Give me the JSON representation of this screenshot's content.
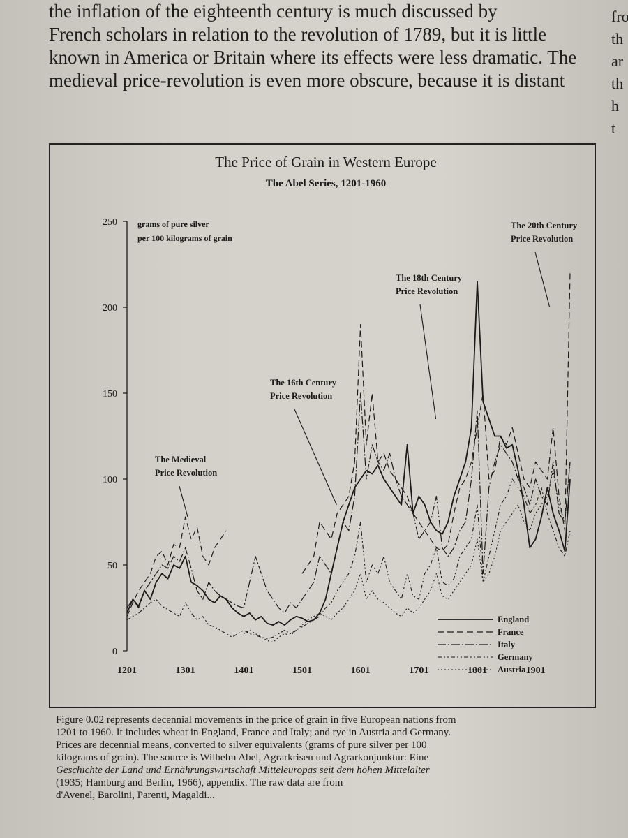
{
  "page_text": {
    "top_lines": [
      "the inflation of the eighteenth century is much discussed by",
      "French scholars in relation to the revolution of 1789, but it is little",
      "known in America or Britain where its effects were less dramatic. The",
      "medieval price-revolution is even more obscure, because it is distant"
    ],
    "side_fragments": [
      "fro",
      "th",
      "ar",
      "th",
      "",
      "h",
      "t"
    ]
  },
  "chart_data": {
    "type": "line",
    "title": "The Price of Grain in Western Europe",
    "subtitle": "The Abel Series, 1201-1960",
    "ylabel": "grams of pure silver per 100 kilograms of grain",
    "ylabel_lines": [
      "grams of pure silver",
      "per 100 kilograms of grain"
    ],
    "xlabel": "",
    "xlim": [
      1201,
      1960
    ],
    "ylim": [
      0,
      250
    ],
    "x_ticks": [
      1201,
      1301,
      1401,
      1501,
      1601,
      1701,
      1801,
      1901
    ],
    "y_ticks": [
      0,
      50,
      100,
      150,
      200,
      250
    ],
    "grid": false,
    "legend_position": "bottom-right",
    "annotations": [
      {
        "lines": [
          "The Medieval",
          "Price Revolution"
        ],
        "points_to": [
          1305,
          78
        ]
      },
      {
        "lines": [
          "The 16th Century",
          "Price Revolution"
        ],
        "points_to": [
          1560,
          85
        ]
      },
      {
        "lines": [
          "The 18th Century",
          "Price Revolution"
        ],
        "points_to": [
          1730,
          135
        ]
      },
      {
        "lines": [
          "The 20th Century",
          "Price Revolution"
        ],
        "points_to": [
          1925,
          200
        ]
      }
    ],
    "series": [
      {
        "name": "England",
        "dash": "",
        "width": 1.8,
        "x": [
          1201,
          1211,
          1221,
          1231,
          1241,
          1251,
          1261,
          1271,
          1281,
          1291,
          1301,
          1311,
          1321,
          1331,
          1341,
          1351,
          1361,
          1371,
          1381,
          1391,
          1401,
          1411,
          1421,
          1431,
          1441,
          1451,
          1461,
          1471,
          1481,
          1491,
          1501,
          1511,
          1521,
          1531,
          1541,
          1551,
          1561,
          1571,
          1581,
          1591,
          1601,
          1611,
          1621,
          1631,
          1641,
          1651,
          1661,
          1671,
          1681,
          1691,
          1701,
          1711,
          1721,
          1731,
          1741,
          1751,
          1761,
          1771,
          1781,
          1791,
          1801,
          1811,
          1821,
          1831,
          1841,
          1851,
          1861,
          1871,
          1881,
          1891,
          1901,
          1911,
          1921,
          1931,
          1941,
          1951,
          1960
        ],
        "y": [
          22,
          30,
          26,
          35,
          30,
          40,
          45,
          42,
          50,
          48,
          55,
          40,
          38,
          35,
          30,
          28,
          32,
          30,
          25,
          22,
          20,
          22,
          18,
          20,
          16,
          15,
          17,
          15,
          18,
          20,
          19,
          17,
          18,
          22,
          30,
          45,
          60,
          75,
          85,
          95,
          100,
          105,
          103,
          108,
          100,
          95,
          90,
          85,
          120,
          80,
          90,
          85,
          75,
          70,
          68,
          75,
          90,
          100,
          110,
          130,
          215,
          145,
          135,
          125,
          125,
          118,
          120,
          105,
          85,
          60,
          65,
          78,
          95,
          80,
          70,
          58,
          100
        ]
      },
      {
        "name": "France",
        "dash": "9,5",
        "width": 1.2,
        "x": [
          1201,
          1211,
          1221,
          1231,
          1241,
          1251,
          1261,
          1271,
          1281,
          1291,
          1301,
          1311,
          1321,
          1331,
          1341,
          1351,
          1361,
          1371,
          1381,
          1391,
          1401,
          1411,
          1421,
          1431,
          1441,
          1451,
          1461,
          1471,
          1481,
          1491,
          1501,
          1511,
          1521,
          1531,
          1541,
          1551,
          1561,
          1571,
          1581,
          1591,
          1601,
          1611,
          1621,
          1631,
          1641,
          1651,
          1661,
          1671,
          1681,
          1691,
          1701,
          1711,
          1721,
          1731,
          1741,
          1751,
          1761,
          1771,
          1781,
          1791,
          1801,
          1811,
          1821,
          1831,
          1841,
          1851,
          1861,
          1871,
          1881,
          1891,
          1901,
          1911,
          1921,
          1931,
          1941,
          1951,
          1960
        ],
        "y": [
          20,
          28,
          35,
          40,
          45,
          55,
          58,
          50,
          62,
          60,
          78,
          65,
          72,
          55,
          50,
          60,
          65,
          70,
          null,
          null,
          null,
          null,
          null,
          null,
          null,
          null,
          null,
          null,
          null,
          null,
          45,
          50,
          55,
          75,
          70,
          65,
          80,
          85,
          90,
          110,
          190,
          120,
          150,
          110,
          115,
          105,
          100,
          95,
          90,
          80,
          75,
          70,
          65,
          60,
          58,
          62,
          80,
          95,
          100,
          110,
          130,
          150,
          100,
          105,
          125,
          120,
          130,
          115,
          100,
          95,
          110,
          105,
          100,
          130,
          90,
          70,
          220
        ]
      },
      {
        "name": "Italy",
        "dash": "12,3,2,3",
        "width": 1.2,
        "x": [
          1201,
          1211,
          1221,
          1231,
          1241,
          1251,
          1261,
          1271,
          1281,
          1291,
          1301,
          1311,
          1321,
          1331,
          1341,
          1351,
          1361,
          1371,
          1381,
          1391,
          1401,
          1411,
          1421,
          1431,
          1441,
          1451,
          1461,
          1471,
          1481,
          1491,
          1501,
          1511,
          1521,
          1531,
          1541,
          1551,
          1561,
          1571,
          1581,
          1591,
          1601,
          1611,
          1621,
          1631,
          1641,
          1651,
          1661,
          1671,
          1681,
          1691,
          1701,
          1711,
          1721,
          1731,
          1741,
          1751,
          1761,
          1771,
          1781,
          1791,
          1801,
          1811,
          1821,
          1831,
          1841,
          1851,
          1861,
          1871,
          1881,
          1891,
          1901,
          1911,
          1921,
          1931,
          1941,
          1951,
          1960
        ],
        "y": [
          25,
          30,
          25,
          35,
          40,
          45,
          50,
          48,
          55,
          52,
          60,
          48,
          35,
          30,
          40,
          35,
          32,
          30,
          28,
          26,
          25,
          40,
          55,
          45,
          35,
          30,
          25,
          22,
          28,
          25,
          30,
          35,
          40,
          55,
          50,
          45,
          60,
          75,
          70,
          90,
          150,
          100,
          120,
          110,
          105,
          115,
          100,
          90,
          85,
          80,
          65,
          70,
          75,
          90,
          60,
          55,
          60,
          70,
          75,
          100,
          140,
          45,
          95,
          110,
          120,
          115,
          110,
          100,
          95,
          85,
          100,
          90,
          85,
          110,
          80,
          75,
          110
        ]
      },
      {
        "name": "Germany",
        "dash": "6,3,2,3,2,3",
        "width": 1.1,
        "x": [
          1201,
          1211,
          1221,
          1231,
          1241,
          1251,
          1261,
          1271,
          1281,
          1291,
          1301,
          1311,
          1321,
          1331,
          1341,
          1351,
          1361,
          1371,
          1381,
          1391,
          1401,
          1411,
          1421,
          1431,
          1441,
          1451,
          1461,
          1471,
          1481,
          1491,
          1501,
          1511,
          1521,
          1531,
          1541,
          1551,
          1561,
          1571,
          1581,
          1591,
          1601,
          1611,
          1621,
          1631,
          1641,
          1651,
          1661,
          1671,
          1681,
          1691,
          1701,
          1711,
          1721,
          1731,
          1741,
          1751,
          1761,
          1771,
          1781,
          1791,
          1801,
          1811,
          1821,
          1831,
          1841,
          1851,
          1861,
          1871,
          1881,
          1891,
          1901,
          1911,
          1921,
          1931,
          1941,
          1951,
          1960
        ],
        "y": [
          18,
          20,
          22,
          25,
          28,
          30,
          26,
          24,
          22,
          20,
          28,
          22,
          18,
          20,
          15,
          14,
          12,
          10,
          8,
          10,
          12,
          10,
          9,
          8,
          7,
          8,
          10,
          12,
          10,
          12,
          14,
          16,
          18,
          20,
          25,
          28,
          35,
          40,
          45,
          55,
          75,
          40,
          50,
          45,
          55,
          40,
          35,
          30,
          45,
          32,
          30,
          45,
          50,
          60,
          40,
          38,
          42,
          55,
          60,
          65,
          85,
          40,
          55,
          70,
          85,
          90,
          100,
          95,
          90,
          80,
          85,
          95,
          80,
          70,
          60,
          55,
          70
        ]
      },
      {
        "name": "Austria",
        "dash": "2,3",
        "width": 1.1,
        "x": [
          1201,
          1211,
          1221,
          1231,
          1241,
          1251,
          1261,
          1271,
          1281,
          1291,
          1301,
          1311,
          1321,
          1331,
          1341,
          1351,
          1361,
          1371,
          1381,
          1391,
          1401,
          1411,
          1421,
          1431,
          1441,
          1451,
          1461,
          1471,
          1481,
          1491,
          1501,
          1511,
          1521,
          1531,
          1541,
          1551,
          1561,
          1571,
          1581,
          1591,
          1601,
          1611,
          1621,
          1631,
          1641,
          1651,
          1661,
          1671,
          1681,
          1691,
          1701,
          1711,
          1721,
          1731,
          1741,
          1751,
          1761,
          1771,
          1781,
          1791,
          1801,
          1811,
          1821,
          1831,
          1841,
          1851,
          1861,
          1871,
          1881,
          1891,
          1901,
          1911,
          1921,
          1931,
          1941,
          1951,
          1960
        ],
        "y": [
          null,
          null,
          null,
          null,
          null,
          null,
          null,
          null,
          null,
          null,
          null,
          null,
          null,
          null,
          null,
          null,
          null,
          null,
          null,
          null,
          10,
          12,
          10,
          8,
          6,
          5,
          8,
          10,
          9,
          12,
          15,
          18,
          20,
          22,
          20,
          18,
          22,
          25,
          30,
          35,
          45,
          30,
          35,
          30,
          28,
          25,
          22,
          20,
          25,
          22,
          25,
          30,
          35,
          45,
          32,
          30,
          35,
          40,
          45,
          50,
          65,
          40,
          45,
          55,
          70,
          75,
          80,
          85,
          75,
          70,
          80,
          85,
          90,
          105,
          85,
          75,
          110
        ]
      }
    ]
  },
  "caption_lines": [
    "Figure 0.02 represents decennial movements in the price of grain in five European nations from",
    "1201 to 1960. It includes wheat in England, France and Italy; and rye in Austria and Germany.",
    "Prices are decennial means, converted to silver equivalents (grams of pure silver per 100",
    "kilograms of grain). The source is Wilhelm Abel, Agrarkrisen und Agrarkonjunktur: Eine",
    "Geschichte der Land und Ernährungswirtschaft Mitteleuropas seit dem höhen Mittelalter",
    "(1935; Hamburg and Berlin, 1966), appendix. The raw data are from",
    "d'Avenel, Barolini, Parenti, Magaldi..."
  ]
}
